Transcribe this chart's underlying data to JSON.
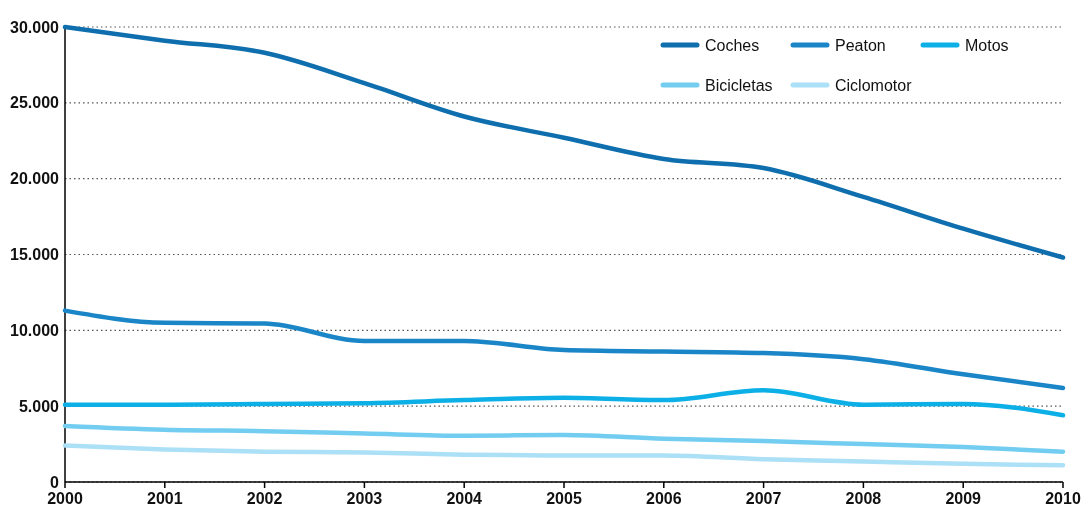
{
  "chart_data": {
    "type": "line",
    "x": [
      2000,
      2001,
      2002,
      2003,
      2004,
      2005,
      2006,
      2007,
      2008,
      2009,
      2010
    ],
    "xlim": [
      2000,
      2010
    ],
    "xticks": [
      2000,
      2001,
      2002,
      2003,
      2004,
      2005,
      2006,
      2007,
      2008,
      2009,
      2010
    ],
    "ylim": [
      0,
      30000
    ],
    "yticks": [
      0,
      {
        "value": 5000,
        "label": "5.000"
      },
      {
        "value": 10000,
        "label": "10.000"
      },
      {
        "value": 15000,
        "label": "15.000"
      },
      {
        "value": 20000,
        "label": "20.000"
      },
      {
        "value": 25000,
        "label": "25.000"
      },
      {
        "value": 30000,
        "label": "30.000"
      }
    ],
    "grid": "y",
    "legend": "top right",
    "marker": "none",
    "line_style": "solid",
    "series": [
      {
        "name": "Coches",
        "color": "#0f6fae",
        "values": [
          30000,
          29100,
          28300,
          26300,
          24100,
          22700,
          21300,
          20700,
          18800,
          16700,
          14800
        ]
      },
      {
        "name": "Peaton",
        "color": "#1a86c8",
        "values": [
          11300,
          10500,
          10450,
          9300,
          9300,
          8700,
          8600,
          8500,
          8100,
          7100,
          6200
        ]
      },
      {
        "name": "Motos",
        "color": "#0cb0e6",
        "values": [
          5100,
          5100,
          5150,
          5200,
          5400,
          5550,
          5400,
          6050,
          5100,
          5150,
          4400
        ]
      },
      {
        "name": "Bicicletas",
        "color": "#72cdf0",
        "values": [
          3700,
          3450,
          3350,
          3200,
          3050,
          3100,
          2850,
          2700,
          2500,
          2300,
          2000
        ]
      },
      {
        "name": "Ciclomotor",
        "color": "#abe0f6",
        "values": [
          2400,
          2150,
          2000,
          1950,
          1800,
          1750,
          1750,
          1500,
          1350,
          1200,
          1100
        ]
      }
    ]
  }
}
